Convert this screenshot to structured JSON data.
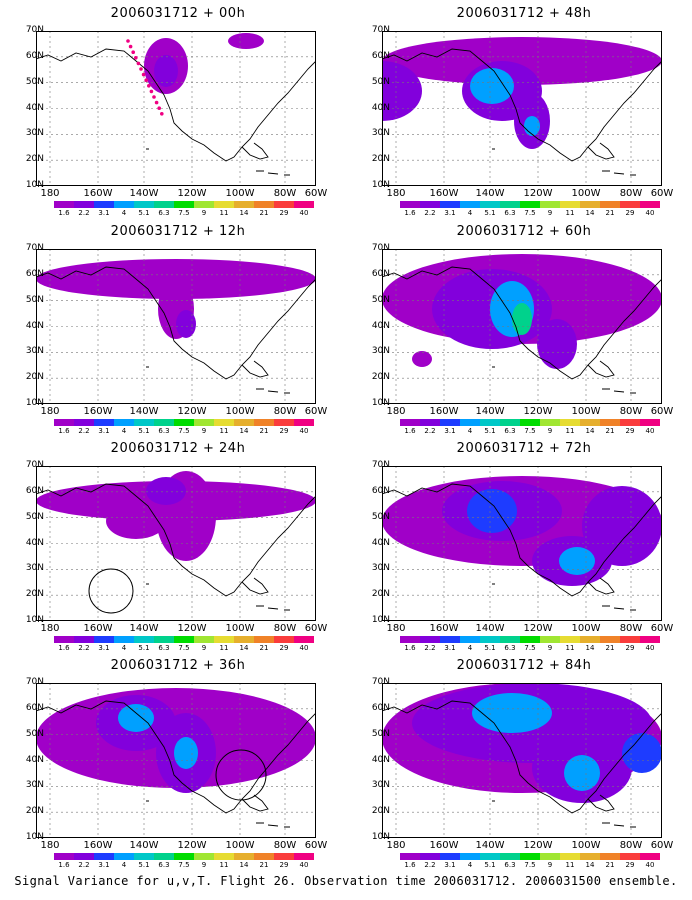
{
  "colors": {
    "scale": [
      "#a000c8",
      "#8200dc",
      "#1e3cff",
      "#00a0ff",
      "#00c8c8",
      "#00d28c",
      "#00dc00",
      "#a0e632",
      "#e6dc32",
      "#e6af2d",
      "#f08228",
      "#fa3c3c",
      "#f00082"
    ],
    "levels": [
      "1.6",
      "2.2",
      "3.1",
      "4",
      "5.1",
      "6.3",
      "7.5",
      "9",
      "11",
      "14",
      "21",
      "29",
      "40"
    ]
  },
  "axes": {
    "lat_labels": [
      "70N",
      "60N",
      "50N",
      "40N",
      "30N",
      "20N",
      "10N"
    ],
    "lon_labels": [
      "180",
      "160W",
      "140W",
      "120W",
      "100W",
      "80W",
      "60W"
    ]
  },
  "panels": [
    {
      "title": "2006031712 + 00h"
    },
    {
      "title": "2006031712 + 48h"
    },
    {
      "title": "2006031712 + 12h"
    },
    {
      "title": "2006031712 + 60h"
    },
    {
      "title": "2006031712 + 24h"
    },
    {
      "title": "2006031712 + 72h"
    },
    {
      "title": "2006031712 + 36h"
    },
    {
      "title": "2006031712 + 84h"
    }
  ],
  "footer": "Signal Variance for u,v,T. Flight 26. Observation time 2006031712. 2006031500 ensemble."
}
